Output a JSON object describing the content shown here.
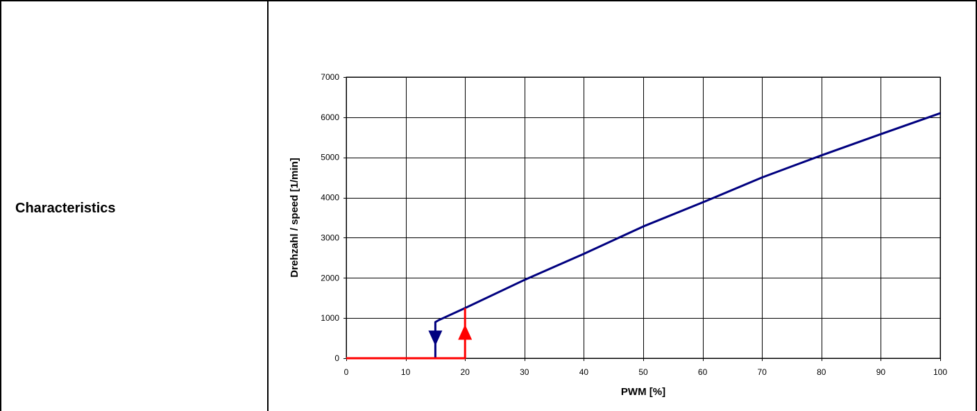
{
  "row": {
    "label": "Characteristics"
  },
  "chart_data": {
    "type": "line",
    "title": "",
    "xlabel": "PWM [%]",
    "ylabel": "Drehzahl / speed [1/min]",
    "xlim": [
      0,
      100
    ],
    "ylim": [
      0,
      7000
    ],
    "xticks": [
      0,
      10,
      20,
      30,
      40,
      50,
      60,
      70,
      80,
      90,
      100
    ],
    "yticks": [
      0,
      1000,
      2000,
      3000,
      4000,
      5000,
      6000,
      7000
    ],
    "grid": true,
    "colors": {
      "speed_curve": "#00007f",
      "startup": "#ff0000"
    },
    "series": [
      {
        "x": [
          15,
          15,
          15.6,
          20,
          30,
          40,
          50,
          60,
          70,
          80,
          90,
          100
        ],
        "y": [
          0,
          900,
          950,
          1250,
          1950,
          2600,
          3280,
          3880,
          4500,
          5050,
          5580,
          6100
        ]
      },
      {
        "x": [
          0,
          20,
          20
        ],
        "y": [
          0,
          0,
          1250
        ]
      }
    ],
    "annotations": [
      {
        "type": "arrow-down",
        "x": 15,
        "y": 500,
        "color": "#00007f"
      },
      {
        "type": "arrow-up",
        "x": 20,
        "y": 650,
        "color": "#ff0000"
      }
    ]
  }
}
